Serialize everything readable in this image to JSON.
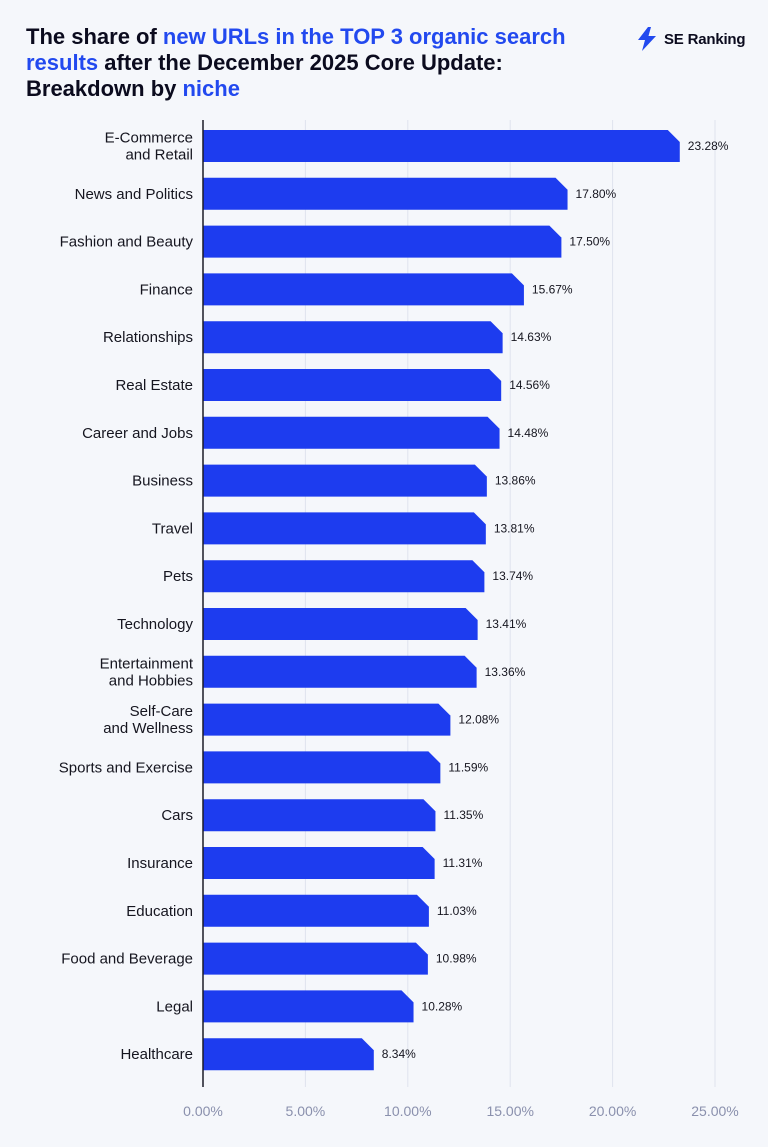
{
  "title": {
    "segments": [
      {
        "text": "The share of ",
        "highlight": false
      },
      {
        "text": "new URLs in the TOP 3 organic search results",
        "highlight": true
      },
      {
        "text": " after the December 2025 Core Update: Breakdown by ",
        "highlight": false
      },
      {
        "text": "niche",
        "highlight": true
      }
    ]
  },
  "brand": {
    "name": "SE Ranking",
    "icon": "se-ranking-bolt-icon"
  },
  "colors": {
    "accent": "#2249ef",
    "bar": "#1d3cef",
    "text": "#0b0b1e",
    "tick": "#8a90ad",
    "grid": "#dfe3ee",
    "background": "#f5f7fb"
  },
  "chart_data": {
    "type": "bar",
    "orientation": "horizontal",
    "categories": [
      [
        "E-Commerce",
        "and Retail"
      ],
      [
        "News and Politics"
      ],
      [
        "Fashion and Beauty"
      ],
      [
        "Finance"
      ],
      [
        "Relationships"
      ],
      [
        "Real Estate"
      ],
      [
        "Career and Jobs"
      ],
      [
        "Business"
      ],
      [
        "Travel"
      ],
      [
        "Pets"
      ],
      [
        "Technology"
      ],
      [
        "Entertainment",
        "and Hobbies"
      ],
      [
        "Self-Care",
        "and Wellness"
      ],
      [
        "Sports and Exercise"
      ],
      [
        "Cars"
      ],
      [
        "Insurance"
      ],
      [
        "Education"
      ],
      [
        "Food and Beverage"
      ],
      [
        "Legal"
      ],
      [
        "Healthcare"
      ]
    ],
    "values": [
      23.28,
      17.8,
      17.5,
      15.67,
      14.63,
      14.56,
      14.48,
      13.86,
      13.81,
      13.74,
      13.41,
      13.36,
      12.08,
      11.59,
      11.35,
      11.31,
      11.03,
      10.98,
      10.28,
      8.34
    ],
    "value_labels": [
      "23.28%",
      "17.80%",
      "17.50%",
      "15.67%",
      "14.63%",
      "14.56%",
      "14.48%",
      "13.86%",
      "13.81%",
      "13.74%",
      "13.41%",
      "13.36%",
      "12.08%",
      "11.59%",
      "11.35%",
      "11.31%",
      "11.03%",
      "10.98%",
      "10.28%",
      "8.34%"
    ],
    "xlim": [
      0,
      25
    ],
    "xticks": [
      0,
      5,
      10,
      15,
      20,
      25
    ],
    "xtick_labels": [
      "0.00%",
      "5.00%",
      "10.00%",
      "15.00%",
      "20.00%",
      "25.00%"
    ],
    "xlabel": "",
    "ylabel": "",
    "grid": true
  }
}
